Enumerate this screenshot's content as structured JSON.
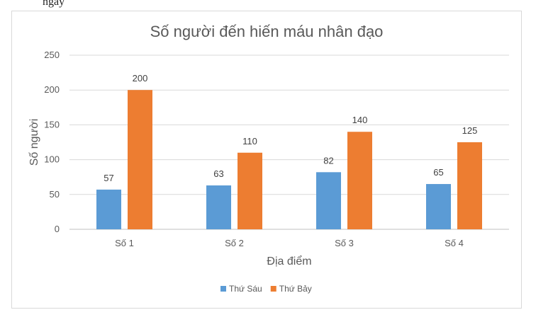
{
  "fragment_text": "ngày",
  "chart_data": {
    "type": "bar",
    "title": "Số người đến hiến máu nhân đạo",
    "xlabel": "Địa điểm",
    "ylabel": "Số người",
    "categories": [
      "Số 1",
      "Số 2",
      "Số 3",
      "Số 4"
    ],
    "ylim": [
      0,
      250
    ],
    "yticks": [
      0,
      50,
      100,
      150,
      200,
      250
    ],
    "grid": true,
    "legend": "bottom",
    "series": [
      {
        "name": "Thứ Sáu",
        "values": [
          57,
          63,
          82,
          65
        ],
        "color": "#5b9bd5"
      },
      {
        "name": "Thứ Bảy",
        "values": [
          200,
          110,
          140,
          125
        ],
        "color": "#ed7d31"
      }
    ]
  }
}
